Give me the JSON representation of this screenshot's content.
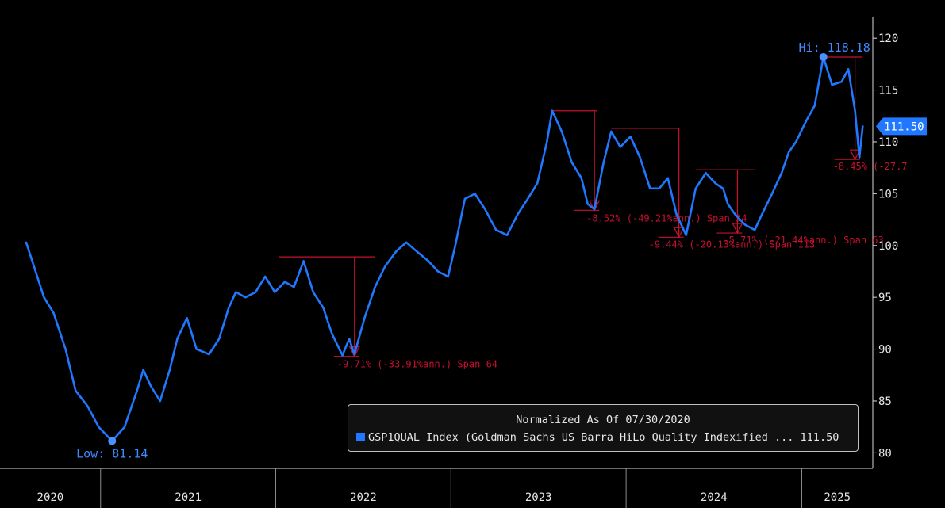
{
  "chart_data": {
    "type": "line",
    "title": "",
    "xlabel": "",
    "ylabel": "",
    "ylim": [
      78.5,
      122
    ],
    "yticks": [
      80,
      85,
      90,
      95,
      100,
      105,
      110,
      115,
      120
    ],
    "xtick_labels": [
      "2020",
      "2021",
      "2022",
      "2023",
      "2024",
      "2025"
    ],
    "grid": false,
    "legend_position": "bottom-right",
    "colors": {
      "line": "#1f78ff",
      "drawdown": "#c8102e",
      "hilo_label": "#3d8bff",
      "text": "#e6e6e6",
      "background": "#000000"
    },
    "series": [
      {
        "name": "GSP1QUAL Index (Goldman Sachs US Barra HiLo Quality Indexified ... 111.50",
        "x": [
          "2020-07-30",
          "2020-08-15",
          "2020-09-05",
          "2020-09-25",
          "2020-10-20",
          "2020-11-10",
          "2020-12-05",
          "2020-12-28",
          "2021-01-25",
          "2021-02-20",
          "2021-03-18",
          "2021-03-31",
          "2021-04-15",
          "2021-05-05",
          "2021-05-25",
          "2021-06-10",
          "2021-06-30",
          "2021-07-20",
          "2021-08-15",
          "2021-09-05",
          "2021-09-25",
          "2021-10-10",
          "2021-10-30",
          "2021-11-20",
          "2021-12-10",
          "2021-12-30",
          "2022-01-20",
          "2022-02-08",
          "2022-02-28",
          "2022-03-20",
          "2022-04-10",
          "2022-04-28",
          "2022-05-20",
          "2022-06-03",
          "2022-06-14",
          "2022-07-05",
          "2022-07-27",
          "2022-08-17",
          "2022-09-10",
          "2022-09-30",
          "2022-10-20",
          "2022-11-15",
          "2022-12-05",
          "2022-12-26",
          "2023-01-10",
          "2023-01-30",
          "2023-02-20",
          "2023-03-13",
          "2023-04-05",
          "2023-04-28",
          "2023-05-20",
          "2023-06-10",
          "2023-06-30",
          "2023-07-20",
          "2023-07-31",
          "2023-08-20",
          "2023-09-10",
          "2023-09-30",
          "2023-10-13",
          "2023-10-27",
          "2023-11-15",
          "2023-12-01",
          "2023-12-20",
          "2024-01-10",
          "2024-01-30",
          "2024-02-20",
          "2024-03-10",
          "2024-03-28",
          "2024-04-15",
          "2024-05-05",
          "2024-05-25",
          "2024-06-15",
          "2024-07-05",
          "2024-07-21",
          "2024-07-31",
          "2024-08-15",
          "2024-09-05",
          "2024-09-25",
          "2024-10-10",
          "2024-10-31",
          "2024-11-20",
          "2024-12-05",
          "2024-12-20",
          "2025-01-10",
          "2025-01-28",
          "2025-02-15",
          "2025-03-05",
          "2025-03-25",
          "2025-04-08",
          "2025-04-22",
          "2025-05-01",
          "2025-05-08"
        ],
        "y": [
          100.3,
          98,
          95,
          93.5,
          90,
          86,
          84.5,
          82.5,
          81.14,
          82.5,
          86,
          88,
          86.5,
          85,
          88,
          91,
          93,
          90,
          89.5,
          91,
          94,
          95.5,
          95,
          95.5,
          97,
          95.5,
          96.5,
          96,
          98.5,
          95.5,
          94,
          91.5,
          89.4,
          91,
          89.5,
          93,
          96,
          98,
          99.5,
          100.3,
          99.5,
          98.5,
          97.5,
          97,
          100,
          104.5,
          105,
          103.5,
          101.5,
          101,
          103,
          104.5,
          106,
          110,
          113,
          111,
          108,
          106.5,
          104,
          103.5,
          108,
          111,
          109.5,
          110.5,
          108.5,
          105.5,
          105.5,
          106.5,
          103,
          101,
          105.5,
          107,
          106,
          105.5,
          104,
          103,
          102,
          101.5,
          103,
          105,
          107,
          109,
          110,
          112,
          113.5,
          118.18,
          115.5,
          115.8,
          117,
          113,
          108.5,
          111.5
        ]
      }
    ],
    "annotations": {
      "hi_label": "Hi: 118.18",
      "hi_point": {
        "x": "2025-02-15",
        "y": 118.18
      },
      "low_label": "Low: 81.14",
      "low_point": {
        "x": "2021-01-25",
        "y": 81.14
      },
      "last_value_label": "111.50",
      "last_value": 111.5,
      "drawdowns": [
        {
          "from_x": "2022-01-08",
          "to_x": "2022-06-14",
          "x_end": "2022-07-27",
          "peak": 98.9,
          "trough": 89.3,
          "label": "-9.71% (-33.91%ann.) Span 64"
        },
        {
          "from_x": "2023-07-31",
          "to_x": "2023-10-27",
          "x_end": "2023-11-01",
          "peak": 113.0,
          "trough": 103.4,
          "label": "-8.52% (-49.21%ann.) Span 34"
        },
        {
          "from_x": "2023-12-01",
          "to_x": "2024-04-20",
          "x_end": "2024-04-20",
          "peak": 111.3,
          "trough": 100.8,
          "label": "-9.44% (-20.13%ann.) Span 113"
        },
        {
          "from_x": "2024-05-25",
          "to_x": "2024-08-20",
          "x_end": "2024-09-25",
          "peak": 107.3,
          "trough": 101.2,
          "label": "-5.71% (-21.44%ann.) Span 63"
        },
        {
          "from_x": "2025-02-15",
          "to_x": "2025-04-22",
          "x_end": "2025-05-08",
          "peak": 118.18,
          "trough": 108.3,
          "label": "-8.45% (-27.7"
        }
      ]
    },
    "legend": {
      "title": "Normalized As Of 07/30/2020",
      "entry": "GSP1QUAL Index (Goldman Sachs US Barra HiLo Quality Indexified ... 111.50"
    }
  }
}
